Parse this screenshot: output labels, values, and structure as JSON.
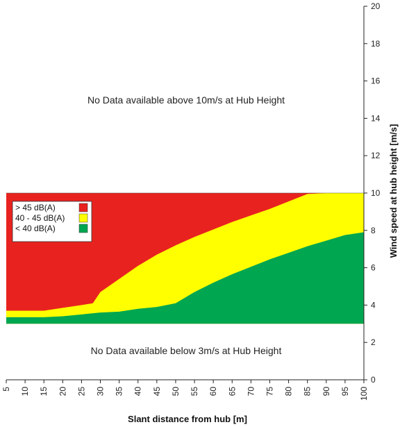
{
  "chart_data": {
    "type": "area",
    "xlabel": "Slant distance from hub [m]",
    "ylabel": "Wind speed at hub height [m/s]",
    "xlim": [
      5,
      100
    ],
    "ylim": [
      0,
      20
    ],
    "x_ticks": [
      5,
      10,
      15,
      20,
      25,
      30,
      35,
      40,
      45,
      50,
      55,
      60,
      65,
      70,
      75,
      80,
      85,
      90,
      95,
      100
    ],
    "y_ticks": [
      0,
      2,
      4,
      6,
      8,
      10,
      12,
      14,
      16,
      18,
      20
    ],
    "y_axis_side": "right",
    "grid": false,
    "legend_position": "left",
    "data_range": [
      3,
      10
    ],
    "series": [
      {
        "name": "> 45 dB(A)",
        "color": "#e8231f",
        "boundary": "region between yellow upper boundary and 10 m/s"
      },
      {
        "name": "40 - 45 dB(A)",
        "color": "#ffff00",
        "upper_boundary": {
          "x": [
            5,
            10,
            15,
            20,
            25,
            28,
            30,
            35,
            40,
            45,
            50,
            55,
            60,
            65,
            70,
            75,
            80,
            85,
            90,
            95,
            100
          ],
          "y": [
            3.7,
            3.7,
            3.7,
            3.85,
            4.0,
            4.1,
            4.7,
            5.4,
            6.1,
            6.7,
            7.2,
            7.65,
            8.05,
            8.45,
            8.8,
            9.15,
            9.55,
            9.95,
            10,
            10,
            10
          ]
        }
      },
      {
        "name": "< 40 dB(A)",
        "color": "#00a650",
        "upper_boundary": {
          "x": [
            5,
            10,
            15,
            20,
            25,
            30,
            35,
            40,
            45,
            50,
            55,
            60,
            65,
            70,
            75,
            80,
            85,
            90,
            95,
            100
          ],
          "y": [
            3.35,
            3.35,
            3.35,
            3.4,
            3.5,
            3.6,
            3.65,
            3.8,
            3.9,
            4.1,
            4.7,
            5.2,
            5.65,
            6.05,
            6.45,
            6.8,
            7.15,
            7.45,
            7.75,
            7.9
          ]
        }
      }
    ],
    "annotations": [
      "No Data available above 10m/s at Hub Height",
      "No Data available below 3m/s at Hub Height"
    ]
  }
}
